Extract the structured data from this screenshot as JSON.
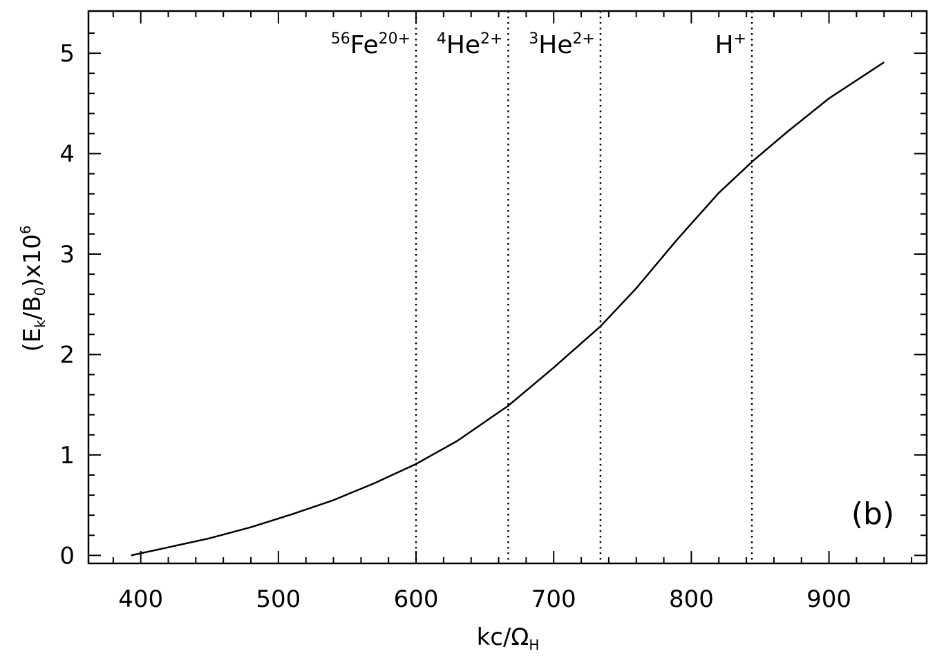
{
  "chart_data": {
    "type": "line",
    "xlabel": {
      "main": "kc/Ω",
      "sub": "H"
    },
    "ylabel": {
      "main": "(E",
      "sub1": "k",
      "mid": "/B",
      "sub2": "0",
      "end": ")x10",
      "sup": "6"
    },
    "xlim": [
      362,
      971
    ],
    "ylim": [
      -0.08,
      5.42
    ],
    "x_ticks": [
      400,
      500,
      600,
      700,
      800,
      900
    ],
    "x_tick_labels": [
      "400",
      "500",
      "600",
      "700",
      "800",
      "900"
    ],
    "y_ticks": [
      0,
      1,
      2,
      3,
      4,
      5
    ],
    "y_tick_labels": [
      "0",
      "1",
      "2",
      "3",
      "4",
      "5"
    ],
    "grid": false,
    "series": [
      {
        "x": [
          393,
          420,
          450,
          480,
          510,
          540,
          570,
          600,
          630,
          667,
          700,
          734,
          760,
          790,
          820,
          845,
          870,
          900,
          940
        ],
        "y": [
          0.0,
          0.08,
          0.17,
          0.28,
          0.41,
          0.55,
          0.72,
          0.91,
          1.14,
          1.49,
          1.87,
          2.28,
          2.66,
          3.15,
          3.61,
          3.93,
          4.22,
          4.55,
          4.91
        ]
      }
    ],
    "vertical_lines": [
      {
        "x": 600,
        "label": {
          "pre": "56",
          "main": "Fe",
          "sup": "20+"
        }
      },
      {
        "x": 667,
        "label": {
          "pre": "4",
          "main": "He",
          "sup": "2+"
        }
      },
      {
        "x": 734,
        "label": {
          "pre": "3",
          "main": "He",
          "sup": "2+"
        }
      },
      {
        "x": 844,
        "label": {
          "pre": "",
          "main": "H",
          "sup": "+"
        }
      }
    ],
    "annotations": [
      "(b)"
    ]
  }
}
